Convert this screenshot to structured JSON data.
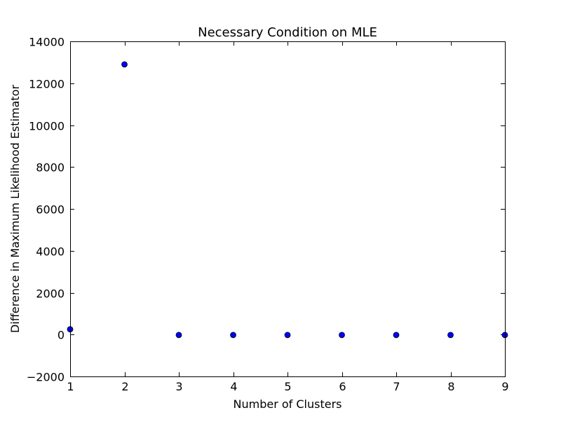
{
  "chart_data": {
    "type": "scatter",
    "title": "Necessary Condition on MLE",
    "xlabel": "Number of Clusters",
    "ylabel": "Difference in Maximum Likelihood Estimator",
    "xlim": [
      1,
      9
    ],
    "ylim": [
      -2000,
      14000
    ],
    "xticks": [
      1,
      2,
      3,
      4,
      5,
      6,
      7,
      8,
      9
    ],
    "yticks": [
      -2000,
      0,
      2000,
      4000,
      6000,
      8000,
      10000,
      12000,
      14000
    ],
    "xtick_labels": [
      "1",
      "2",
      "3",
      "4",
      "5",
      "6",
      "7",
      "8",
      "9"
    ],
    "ytick_labels": [
      "−2000",
      "0",
      "2000",
      "4000",
      "6000",
      "8000",
      "10000",
      "12000",
      "14000"
    ],
    "grid": false,
    "marker_color": "#0000ff",
    "series": [
      {
        "x": [
          1,
          2,
          3,
          4,
          5,
          6,
          7,
          8,
          9
        ],
        "y": [
          250,
          12900,
          -20,
          -20,
          -20,
          -20,
          -20,
          -20,
          -20
        ]
      }
    ]
  }
}
